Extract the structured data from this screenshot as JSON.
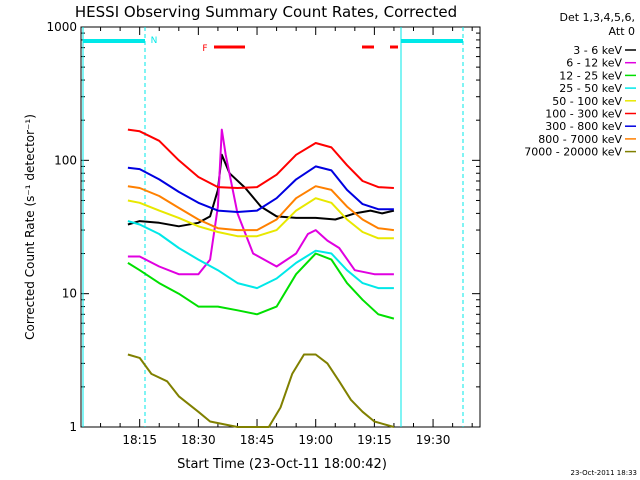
{
  "chart_data": {
    "type": "line",
    "title": "HESSI Observing Summary Count Rates, Corrected",
    "ylabel": "Corrected Count Rate (s⁻¹ detector⁻¹)",
    "xlabel": "Start Time (23-Oct-11 18:00:42)",
    "yscale": "log",
    "ylim": [
      1,
      1000
    ],
    "xlim_minutes_after_18h": [
      0,
      102
    ],
    "x_tick_labels": [
      "18:15",
      "18:30",
      "18:45",
      "19:00",
      "19:15",
      "19:30"
    ],
    "x_tick_minutes_after_18h": [
      15,
      30,
      45,
      60,
      75,
      90
    ],
    "y_tick_labels": [
      "1",
      "10",
      "100",
      "1000"
    ],
    "y_tick_values": [
      1,
      10,
      100,
      1000
    ],
    "legend_title_lines": [
      "Det 1,3,4,5,6,",
      "Att 0"
    ],
    "legend_placement": "right",
    "series": [
      {
        "name": "3 - 6 keV",
        "color": "#000000",
        "points": [
          [
            12,
            33
          ],
          [
            15,
            35
          ],
          [
            20,
            34
          ],
          [
            25,
            32
          ],
          [
            30,
            34
          ],
          [
            33,
            38
          ],
          [
            35,
            60
          ],
          [
            36,
            110
          ],
          [
            38,
            80
          ],
          [
            42,
            62
          ],
          [
            46,
            45
          ],
          [
            50,
            38
          ],
          [
            55,
            37
          ],
          [
            60,
            37
          ],
          [
            65,
            36
          ],
          [
            70,
            40
          ],
          [
            74,
            42
          ],
          [
            77,
            40
          ],
          [
            80,
            42
          ]
        ]
      },
      {
        "name": "6 - 12 keV",
        "color": "#e000e0",
        "points": [
          [
            12,
            19
          ],
          [
            15,
            19
          ],
          [
            20,
            16
          ],
          [
            25,
            14
          ],
          [
            30,
            14
          ],
          [
            33,
            18
          ],
          [
            35,
            45
          ],
          [
            36,
            170
          ],
          [
            37,
            110
          ],
          [
            40,
            40
          ],
          [
            44,
            20
          ],
          [
            50,
            16
          ],
          [
            55,
            20
          ],
          [
            58,
            28
          ],
          [
            60,
            30
          ],
          [
            63,
            25
          ],
          [
            66,
            22
          ],
          [
            70,
            15
          ],
          [
            75,
            14
          ],
          [
            80,
            14
          ]
        ]
      },
      {
        "name": "12 - 25 keV",
        "color": "#00e000",
        "points": [
          [
            12,
            17
          ],
          [
            15,
            15
          ],
          [
            20,
            12
          ],
          [
            25,
            10
          ],
          [
            30,
            8
          ],
          [
            35,
            8
          ],
          [
            40,
            7.5
          ],
          [
            45,
            7
          ],
          [
            50,
            8
          ],
          [
            55,
            14
          ],
          [
            60,
            20
          ],
          [
            64,
            18
          ],
          [
            68,
            12
          ],
          [
            72,
            9
          ],
          [
            76,
            7
          ],
          [
            80,
            6.5
          ]
        ]
      },
      {
        "name": "25 - 50 keV",
        "color": "#00e8e8",
        "points": [
          [
            12,
            35
          ],
          [
            15,
            33
          ],
          [
            20,
            28
          ],
          [
            25,
            22
          ],
          [
            30,
            18
          ],
          [
            35,
            15
          ],
          [
            40,
            12
          ],
          [
            45,
            11
          ],
          [
            50,
            13
          ],
          [
            55,
            17
          ],
          [
            60,
            21
          ],
          [
            64,
            20
          ],
          [
            68,
            15
          ],
          [
            72,
            12
          ],
          [
            76,
            11
          ],
          [
            80,
            11
          ]
        ]
      },
      {
        "name": "50 - 100 keV",
        "color": "#e8e800",
        "points": [
          [
            12,
            50
          ],
          [
            15,
            48
          ],
          [
            20,
            42
          ],
          [
            25,
            37
          ],
          [
            30,
            32
          ],
          [
            35,
            29
          ],
          [
            40,
            27
          ],
          [
            45,
            27
          ],
          [
            50,
            30
          ],
          [
            55,
            42
          ],
          [
            60,
            52
          ],
          [
            64,
            48
          ],
          [
            68,
            36
          ],
          [
            72,
            29
          ],
          [
            76,
            26
          ],
          [
            80,
            26
          ]
        ]
      },
      {
        "name": "100 - 300 keV",
        "color": "#ff0000",
        "points": [
          [
            12,
            170
          ],
          [
            15,
            165
          ],
          [
            20,
            140
          ],
          [
            25,
            100
          ],
          [
            30,
            75
          ],
          [
            35,
            63
          ],
          [
            40,
            62
          ],
          [
            45,
            63
          ],
          [
            50,
            78
          ],
          [
            55,
            110
          ],
          [
            60,
            135
          ],
          [
            64,
            125
          ],
          [
            68,
            92
          ],
          [
            72,
            70
          ],
          [
            76,
            63
          ],
          [
            80,
            62
          ]
        ]
      },
      {
        "name": "300 - 800 keV",
        "color": "#0000e0",
        "points": [
          [
            12,
            88
          ],
          [
            15,
            86
          ],
          [
            20,
            72
          ],
          [
            25,
            58
          ],
          [
            30,
            48
          ],
          [
            35,
            42
          ],
          [
            40,
            41
          ],
          [
            45,
            42
          ],
          [
            50,
            52
          ],
          [
            55,
            72
          ],
          [
            60,
            90
          ],
          [
            64,
            84
          ],
          [
            68,
            60
          ],
          [
            72,
            47
          ],
          [
            76,
            43
          ],
          [
            80,
            43
          ]
        ]
      },
      {
        "name": "800 - 7000 keV",
        "color": "#ff8000",
        "points": [
          [
            12,
            64
          ],
          [
            15,
            62
          ],
          [
            20,
            54
          ],
          [
            25,
            44
          ],
          [
            30,
            36
          ],
          [
            35,
            31
          ],
          [
            40,
            30
          ],
          [
            45,
            30
          ],
          [
            50,
            36
          ],
          [
            55,
            52
          ],
          [
            60,
            64
          ],
          [
            64,
            60
          ],
          [
            68,
            45
          ],
          [
            72,
            36
          ],
          [
            76,
            31
          ],
          [
            80,
            30
          ]
        ]
      },
      {
        "name": "7000 - 20000 keV",
        "color": "#808000",
        "points": [
          [
            12,
            3.5
          ],
          [
            15,
            3.3
          ],
          [
            18,
            2.5
          ],
          [
            22,
            2.2
          ],
          [
            25,
            1.7
          ],
          [
            30,
            1.3
          ],
          [
            33,
            1.1
          ],
          [
            40,
            1.0
          ],
          [
            48,
            1.0
          ],
          [
            51,
            1.4
          ],
          [
            54,
            2.5
          ],
          [
            57,
            3.5
          ],
          [
            60,
            3.5
          ],
          [
            63,
            3.0
          ],
          [
            66,
            2.2
          ],
          [
            69,
            1.6
          ],
          [
            72,
            1.3
          ],
          [
            75,
            1.1
          ],
          [
            80,
            1.0
          ]
        ]
      }
    ],
    "annotations": [
      {
        "label": "N",
        "color": "#00e8e8"
      },
      {
        "label": "F",
        "color": "#ff0000"
      }
    ]
  },
  "footer": {
    "timestamp": "23-Oct-2011 18:33"
  }
}
